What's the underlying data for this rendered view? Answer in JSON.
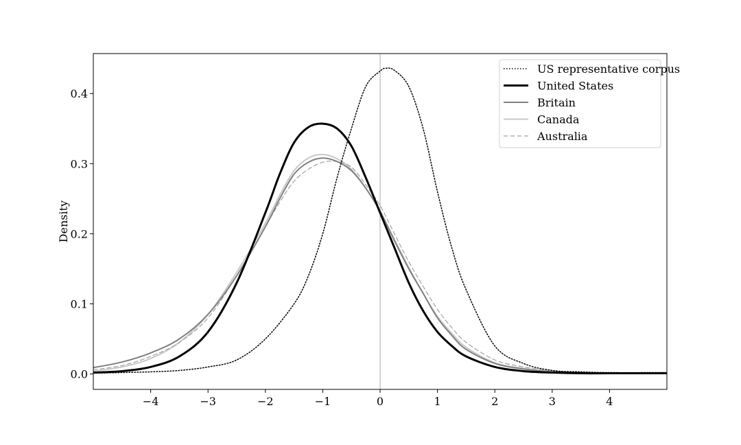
{
  "chart_data": {
    "type": "line",
    "title": "",
    "xlabel": "",
    "ylabel": "Density",
    "xlim": [
      -5,
      5
    ],
    "ylim": [
      -0.022,
      0.457
    ],
    "xticks": [
      -4,
      -3,
      -2,
      -1,
      0,
      1,
      2,
      3,
      4
    ],
    "xtick_labels": [
      "−4",
      "−3",
      "−2",
      "−1",
      "0",
      "1",
      "2",
      "3",
      "4"
    ],
    "yticks": [
      0.0,
      0.1,
      0.2,
      0.3,
      0.4
    ],
    "ytick_labels": [
      "0.0",
      "0.1",
      "0.2",
      "0.3",
      "0.4"
    ],
    "vline_x": 0,
    "grid": false,
    "legend_position": "top-right",
    "series": [
      {
        "name": "US representative corpus",
        "color": "#000000",
        "style": "dotted",
        "x": [
          -5,
          -4.5,
          -4,
          -3.5,
          -3,
          -2.5,
          -2,
          -1.5,
          -1.25,
          -1,
          -0.75,
          -0.5,
          -0.25,
          0,
          0.1,
          0.25,
          0.5,
          0.75,
          1,
          1.25,
          1.5,
          2,
          2.5,
          3,
          3.5,
          4,
          5
        ],
        "y": [
          0.001,
          0.002,
          0.003,
          0.005,
          0.01,
          0.02,
          0.05,
          0.1,
          0.14,
          0.2,
          0.28,
          0.35,
          0.41,
          0.432,
          0.436,
          0.433,
          0.41,
          0.35,
          0.26,
          0.18,
          0.12,
          0.04,
          0.015,
          0.005,
          0.003,
          0.002,
          0.002
        ]
      },
      {
        "name": "United States",
        "color": "#000000",
        "style": "solid-thick",
        "x": [
          -5,
          -4.5,
          -4,
          -3.5,
          -3,
          -2.5,
          -2,
          -1.75,
          -1.5,
          -1.25,
          -1,
          -0.75,
          -0.5,
          -0.25,
          0,
          0.25,
          0.5,
          0.75,
          1,
          1.25,
          1.5,
          2,
          2.5,
          3,
          3.5,
          4,
          5
        ],
        "y": [
          0.002,
          0.004,
          0.01,
          0.025,
          0.06,
          0.13,
          0.23,
          0.285,
          0.33,
          0.352,
          0.357,
          0.35,
          0.325,
          0.28,
          0.23,
          0.18,
          0.13,
          0.09,
          0.06,
          0.04,
          0.025,
          0.01,
          0.004,
          0.002,
          0.001,
          0.001,
          0.001
        ]
      },
      {
        "name": "Britain",
        "color": "#808080",
        "style": "solid",
        "x": [
          -5,
          -4.5,
          -4,
          -3.5,
          -3,
          -2.5,
          -2,
          -1.75,
          -1.5,
          -1.25,
          -1,
          -0.75,
          -0.5,
          -0.25,
          0,
          0.25,
          0.5,
          0.75,
          1,
          1.25,
          1.5,
          2,
          2.5,
          3,
          3.5,
          4,
          5
        ],
        "y": [
          0.009,
          0.017,
          0.03,
          0.05,
          0.085,
          0.14,
          0.21,
          0.25,
          0.285,
          0.302,
          0.308,
          0.303,
          0.29,
          0.265,
          0.232,
          0.19,
          0.15,
          0.115,
          0.08,
          0.055,
          0.035,
          0.015,
          0.007,
          0.003,
          0.002,
          0.001,
          0.001
        ]
      },
      {
        "name": "Canada",
        "color": "#c8c8c8",
        "style": "solid",
        "x": [
          -5,
          -4.5,
          -4,
          -3.5,
          -3,
          -2.5,
          -2,
          -1.75,
          -1.5,
          -1.25,
          -1,
          -0.75,
          -0.5,
          -0.25,
          0,
          0.25,
          0.5,
          0.75,
          1,
          1.25,
          1.5,
          2,
          2.5,
          3,
          3.5,
          4,
          5
        ],
        "y": [
          0.004,
          0.01,
          0.022,
          0.045,
          0.085,
          0.145,
          0.215,
          0.255,
          0.29,
          0.308,
          0.313,
          0.307,
          0.292,
          0.265,
          0.232,
          0.192,
          0.152,
          0.115,
          0.082,
          0.058,
          0.038,
          0.016,
          0.008,
          0.004,
          0.002,
          0.001,
          0.001
        ]
      },
      {
        "name": "Australia",
        "color": "#a0a0a0",
        "style": "dashed",
        "x": [
          -5,
          -4.5,
          -4,
          -3.5,
          -3,
          -2.5,
          -2,
          -1.75,
          -1.5,
          -1.25,
          -1,
          -0.75,
          -0.5,
          -0.25,
          0,
          0.25,
          0.5,
          0.75,
          1,
          1.25,
          1.5,
          2,
          2.5,
          3,
          3.5,
          4,
          5
        ],
        "y": [
          0.006,
          0.012,
          0.025,
          0.045,
          0.08,
          0.14,
          0.21,
          0.245,
          0.275,
          0.292,
          0.302,
          0.303,
          0.295,
          0.27,
          0.24,
          0.2,
          0.16,
          0.125,
          0.092,
          0.066,
          0.045,
          0.02,
          0.01,
          0.005,
          0.002,
          0.001,
          0.001
        ]
      }
    ]
  }
}
